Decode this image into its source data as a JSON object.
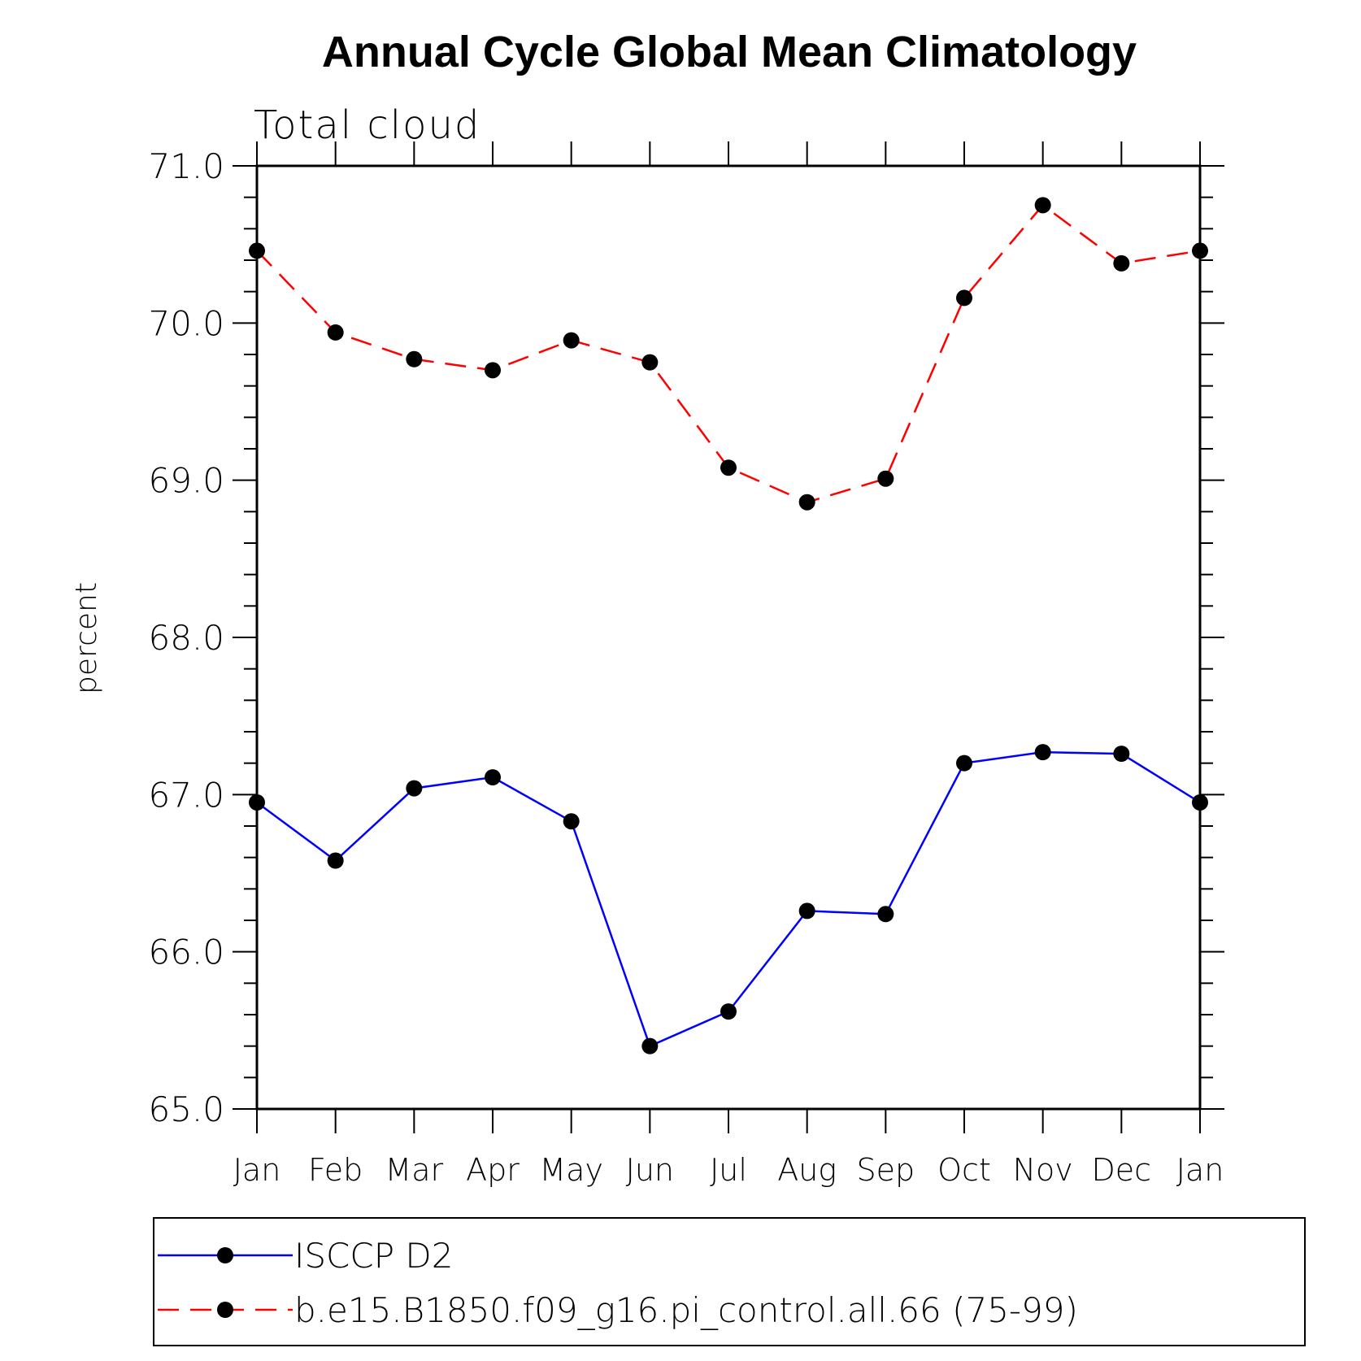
{
  "chart_data": {
    "type": "line",
    "title": "Annual Cycle Global Mean Climatology",
    "subtitle": "Total cloud",
    "xlabel": "",
    "ylabel": "percent",
    "categories": [
      "Jan",
      "Feb",
      "Mar",
      "Apr",
      "May",
      "Jun",
      "Jul",
      "Aug",
      "Sep",
      "Oct",
      "Nov",
      "Dec",
      "Jan"
    ],
    "ylim": [
      65.0,
      71.0
    ],
    "yticks": [
      "65.0",
      "66.0",
      "67.0",
      "68.0",
      "69.0",
      "70.0",
      "71.0"
    ],
    "grid": false,
    "legend_position": "bottom",
    "series": [
      {
        "name": "ISCCP D2",
        "color": "#0000ff",
        "line_style": "solid",
        "marker": "filled-circle",
        "values": [
          66.95,
          66.58,
          67.04,
          67.11,
          66.83,
          65.4,
          65.62,
          66.26,
          66.24,
          67.2,
          67.27,
          67.26,
          66.95
        ]
      },
      {
        "name": "b.e15.B1850.f09_g16.pi_control.all.66 (75-99)",
        "color": "#ff0000",
        "line_style": "dashed",
        "marker": "filled-circle",
        "values": [
          70.46,
          69.94,
          69.77,
          69.7,
          69.89,
          69.75,
          69.08,
          68.86,
          69.01,
          70.16,
          70.75,
          70.38,
          70.46
        ]
      }
    ]
  }
}
